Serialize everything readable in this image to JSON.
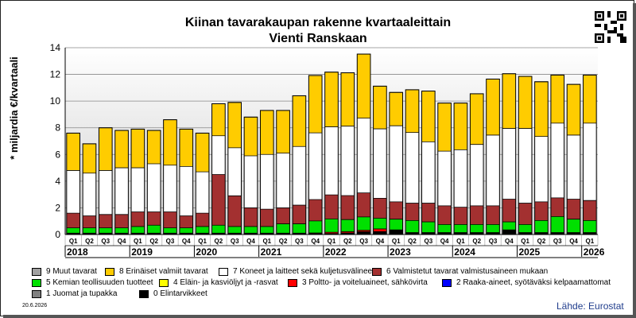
{
  "title_line1": "Kiinan tavarakaupan rakenne kvartaaleittain",
  "title_line2": "Vienti Ranskaan",
  "source": "Lähde: Eurostat",
  "date": "20.6.2026",
  "chart_data": {
    "type": "bar",
    "stacked": true,
    "ylabel": "* miljardia €/kvartaali",
    "ylim": [
      0,
      14
    ],
    "yticks": [
      0,
      2,
      4,
      6,
      8,
      10,
      12,
      14
    ],
    "grid": true,
    "categories": [
      "Q1",
      "Q2",
      "Q3",
      "Q4",
      "Q1",
      "Q2",
      "Q3",
      "Q4",
      "Q1",
      "Q2",
      "Q3",
      "Q4",
      "Q1",
      "Q2",
      "Q3",
      "Q4",
      "Q1",
      "Q2",
      "Q3",
      "Q4",
      "Q1",
      "Q2",
      "Q3",
      "Q4",
      "Q1",
      "Q2",
      "Q3",
      "Q4",
      "Q1",
      "Q2",
      "Q3",
      "Q4",
      "Q1"
    ],
    "years": [
      {
        "label": "2018",
        "start": 0
      },
      {
        "label": "2019",
        "start": 4
      },
      {
        "label": "2020",
        "start": 8
      },
      {
        "label": "2021",
        "start": 12
      },
      {
        "label": "2022",
        "start": 16
      },
      {
        "label": "2023",
        "start": 20
      },
      {
        "label": "2024",
        "start": 24
      },
      {
        "label": "2025",
        "start": 28
      },
      {
        "label": "2026",
        "start": 32
      }
    ],
    "series": [
      {
        "name": "0 Elintarvikkeet",
        "color": "#000000",
        "values": [
          0.05,
          0.05,
          0.05,
          0.05,
          0.05,
          0.05,
          0.05,
          0.05,
          0.05,
          0.05,
          0.05,
          0.05,
          0.05,
          0.05,
          0.05,
          0.05,
          0.05,
          0.1,
          0.2,
          0.2,
          0.3,
          0.1,
          0.1,
          0.1,
          0.1,
          0.1,
          0.1,
          0.3,
          0.1,
          0.1,
          0.1,
          0.1,
          0.1
        ]
      },
      {
        "name": "1 Juomat ja tupakka",
        "color": "#808080",
        "values": [
          0,
          0,
          0,
          0,
          0,
          0,
          0,
          0,
          0,
          0,
          0,
          0,
          0,
          0,
          0,
          0,
          0,
          0,
          0,
          0,
          0,
          0,
          0,
          0,
          0,
          0,
          0,
          0,
          0,
          0,
          0,
          0,
          0
        ]
      },
      {
        "name": "2 Raaka-aineet, syötäväksi kelpaamattomat",
        "color": "#0000ff",
        "values": [
          0.02,
          0.02,
          0.02,
          0.02,
          0.02,
          0.02,
          0.02,
          0.02,
          0.02,
          0.02,
          0.02,
          0.02,
          0.02,
          0.02,
          0.02,
          0.02,
          0.02,
          0.02,
          0.02,
          0.02,
          0.02,
          0.02,
          0.02,
          0.02,
          0.02,
          0.02,
          0.02,
          0.02,
          0.02,
          0.02,
          0.02,
          0.02,
          0.02
        ]
      },
      {
        "name": "3 Poltto- ja voiteluaineet, sähkövirta",
        "color": "#ff0000",
        "values": [
          0.03,
          0.03,
          0.03,
          0.03,
          0.03,
          0.03,
          0.03,
          0.03,
          0.03,
          0.03,
          0.03,
          0.03,
          0.03,
          0.03,
          0.03,
          0.05,
          0.1,
          0.1,
          0.1,
          0.2,
          0.03,
          0.03,
          0.03,
          0.03,
          0.03,
          0.03,
          0.03,
          0.03,
          0.03,
          0.03,
          0.03,
          0.03,
          0.03
        ]
      },
      {
        "name": "4 Eläin- ja kasviöljyt ja -rasvat",
        "color": "#ffff00",
        "values": [
          0,
          0,
          0,
          0,
          0,
          0,
          0,
          0,
          0,
          0,
          0,
          0,
          0,
          0,
          0,
          0,
          0,
          0,
          0,
          0,
          0,
          0,
          0,
          0,
          0,
          0,
          0,
          0,
          0,
          0,
          0,
          0,
          0
        ]
      },
      {
        "name": "5 Kemian teollisuuden tuotteet",
        "color": "#00e000",
        "values": [
          0.4,
          0.4,
          0.4,
          0.4,
          0.5,
          0.6,
          0.4,
          0.4,
          0.5,
          0.6,
          0.5,
          0.5,
          0.5,
          0.7,
          0.7,
          0.9,
          1.0,
          0.9,
          1.0,
          0.8,
          0.8,
          0.9,
          0.8,
          0.6,
          0.6,
          0.6,
          0.6,
          0.6,
          0.6,
          0.9,
          1.2,
          1.0,
          0.9
        ]
      },
      {
        "name": "6 Valmistetut tavarat valmistusaineen mukaan",
        "color": "#a33030",
        "values": [
          1.1,
          0.9,
          1.0,
          1.0,
          1.1,
          1.0,
          1.2,
          0.9,
          1.0,
          3.8,
          2.3,
          1.4,
          1.3,
          1.2,
          1.4,
          1.6,
          1.8,
          1.8,
          1.8,
          1.5,
          1.3,
          1.3,
          1.4,
          1.4,
          1.3,
          1.4,
          1.4,
          1.7,
          1.6,
          1.4,
          1.4,
          1.5,
          1.5
        ]
      },
      {
        "name": "7 Koneet ja laitteet sekä kuljetusvälineet",
        "color": "#ffffff",
        "values": [
          3.2,
          3.2,
          3.3,
          3.5,
          3.3,
          3.6,
          3.5,
          3.7,
          3.1,
          2.9,
          3.6,
          3.9,
          4.1,
          4.1,
          4.4,
          5.0,
          5.1,
          5.2,
          5.6,
          5.2,
          5.7,
          5.3,
          4.6,
          4.1,
          4.3,
          4.6,
          5.3,
          5.3,
          5.6,
          4.9,
          5.6,
          4.8,
          5.8
        ]
      },
      {
        "name": "8 Erinäiset valmiit tavarat",
        "color": "#ffcc00",
        "values": [
          2.8,
          2.2,
          3.2,
          2.8,
          2.9,
          2.5,
          3.4,
          2.8,
          2.9,
          2.4,
          3.4,
          2.9,
          3.3,
          3.2,
          3.8,
          4.3,
          4.1,
          4.0,
          4.8,
          3.2,
          2.5,
          3.2,
          3.8,
          3.6,
          3.5,
          3.8,
          4.2,
          4.1,
          3.9,
          4.1,
          3.6,
          3.8,
          3.6
        ]
      },
      {
        "name": "9 Muut tavarat",
        "color": "#a0a0a0",
        "values": [
          0,
          0,
          0,
          0,
          0,
          0,
          0,
          0,
          0,
          0,
          0,
          0,
          0,
          0,
          0,
          0,
          0,
          0,
          0,
          0,
          0,
          0,
          0,
          0,
          0,
          0,
          0,
          0,
          0,
          0,
          0,
          0,
          0
        ]
      }
    ],
    "legend": [
      {
        "key": "9 Muut tavarat",
        "color": "#a0a0a0"
      },
      {
        "key": "8 Erinäiset valmiit tavarat",
        "color": "#ffcc00"
      },
      {
        "key": "7 Koneet ja laitteet sekä kuljetusvälineet",
        "color": "#ffffff"
      },
      {
        "key": "6 Valmistetut tavarat valmistusaineen mukaan",
        "color": "#a33030"
      },
      {
        "key": "5 Kemian teollisuuden tuotteet",
        "color": "#00e000"
      },
      {
        "key": "4 Eläin- ja kasviöljyt ja -rasvat",
        "color": "#ffff00"
      },
      {
        "key": "3 Poltto- ja voiteluaineet, sähkövirta",
        "color": "#ff0000"
      },
      {
        "key": "2 Raaka-aineet, syötäväksi kelpaamattomat",
        "color": "#0000ff"
      },
      {
        "key": "1 Juomat ja tupakka",
        "color": "#808080"
      },
      {
        "key": "0 Elintarvikkeet",
        "color": "#000000"
      }
    ]
  }
}
